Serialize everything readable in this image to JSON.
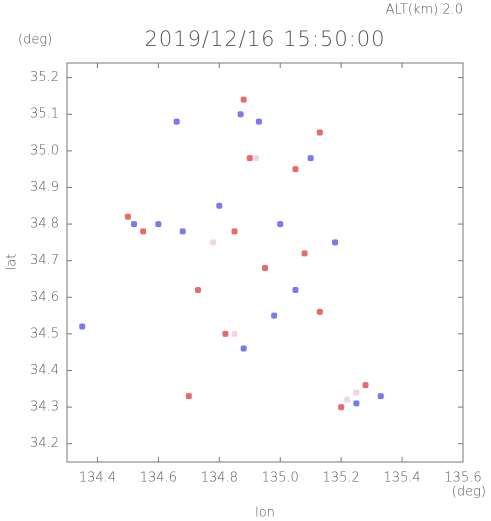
{
  "chart_data": {
    "type": "scatter",
    "title": "2019/12/16 15:50:00",
    "subtitle": "ALT(km) 2.0",
    "y_unit": "(deg)",
    "x_unit": "(deg)",
    "x_label": "lon",
    "y_label": "lat",
    "xlim": [
      134.3,
      135.6
    ],
    "ylim": [
      34.15,
      35.24
    ],
    "xticks": [
      {
        "value": 134.4,
        "label": "134.4"
      },
      {
        "value": 134.6,
        "label": "134.6"
      },
      {
        "value": 134.8,
        "label": "134.8"
      },
      {
        "value": 135.0,
        "label": "135.0"
      },
      {
        "value": 135.2,
        "label": "135.2"
      },
      {
        "value": 135.4,
        "label": "135.4"
      },
      {
        "value": 135.6,
        "label": "135.6"
      }
    ],
    "yticks": [
      {
        "value": 34.2,
        "label": "34.2"
      },
      {
        "value": 34.3,
        "label": "34.3"
      },
      {
        "value": 34.4,
        "label": "34.4"
      },
      {
        "value": 34.5,
        "label": "34.5"
      },
      {
        "value": 34.6,
        "label": "34.6"
      },
      {
        "value": 34.7,
        "label": "34.7"
      },
      {
        "value": 34.8,
        "label": "34.8"
      },
      {
        "value": 34.9,
        "label": "34.9"
      },
      {
        "value": 35.0,
        "label": "35.0"
      },
      {
        "value": 35.1,
        "label": "35.1"
      },
      {
        "value": 35.2,
        "label": "35.2"
      }
    ],
    "series": [
      {
        "color": "#e86a6a",
        "x": [
          134.5,
          134.7,
          134.88,
          134.9,
          135.05,
          135.13,
          134.85,
          134.73,
          135.2,
          135.28,
          134.95,
          135.08,
          134.82,
          134.55,
          135.13
        ],
        "y": [
          34.82,
          34.33,
          35.14,
          34.98,
          34.95,
          35.05,
          34.78,
          34.62,
          34.3,
          34.36,
          34.68,
          34.72,
          34.5,
          34.78,
          34.56
        ]
      },
      {
        "color": "#7a7aee",
        "x": [
          134.6,
          134.52,
          134.87,
          134.93,
          135.1,
          134.8,
          134.68,
          135.0,
          134.88,
          135.25,
          135.33,
          134.66,
          135.05,
          134.35,
          134.98,
          135.18
        ],
        "y": [
          34.8,
          34.8,
          35.1,
          35.08,
          34.98,
          34.85,
          34.78,
          34.8,
          34.46,
          34.31,
          34.33,
          35.08,
          34.62,
          34.52,
          34.55,
          34.75
        ]
      },
      {
        "color": "#f2d4e2",
        "x": [
          134.85,
          135.25,
          134.92,
          134.78,
          135.22
        ],
        "y": [
          34.5,
          34.34,
          34.98,
          34.75,
          34.32
        ]
      }
    ]
  }
}
